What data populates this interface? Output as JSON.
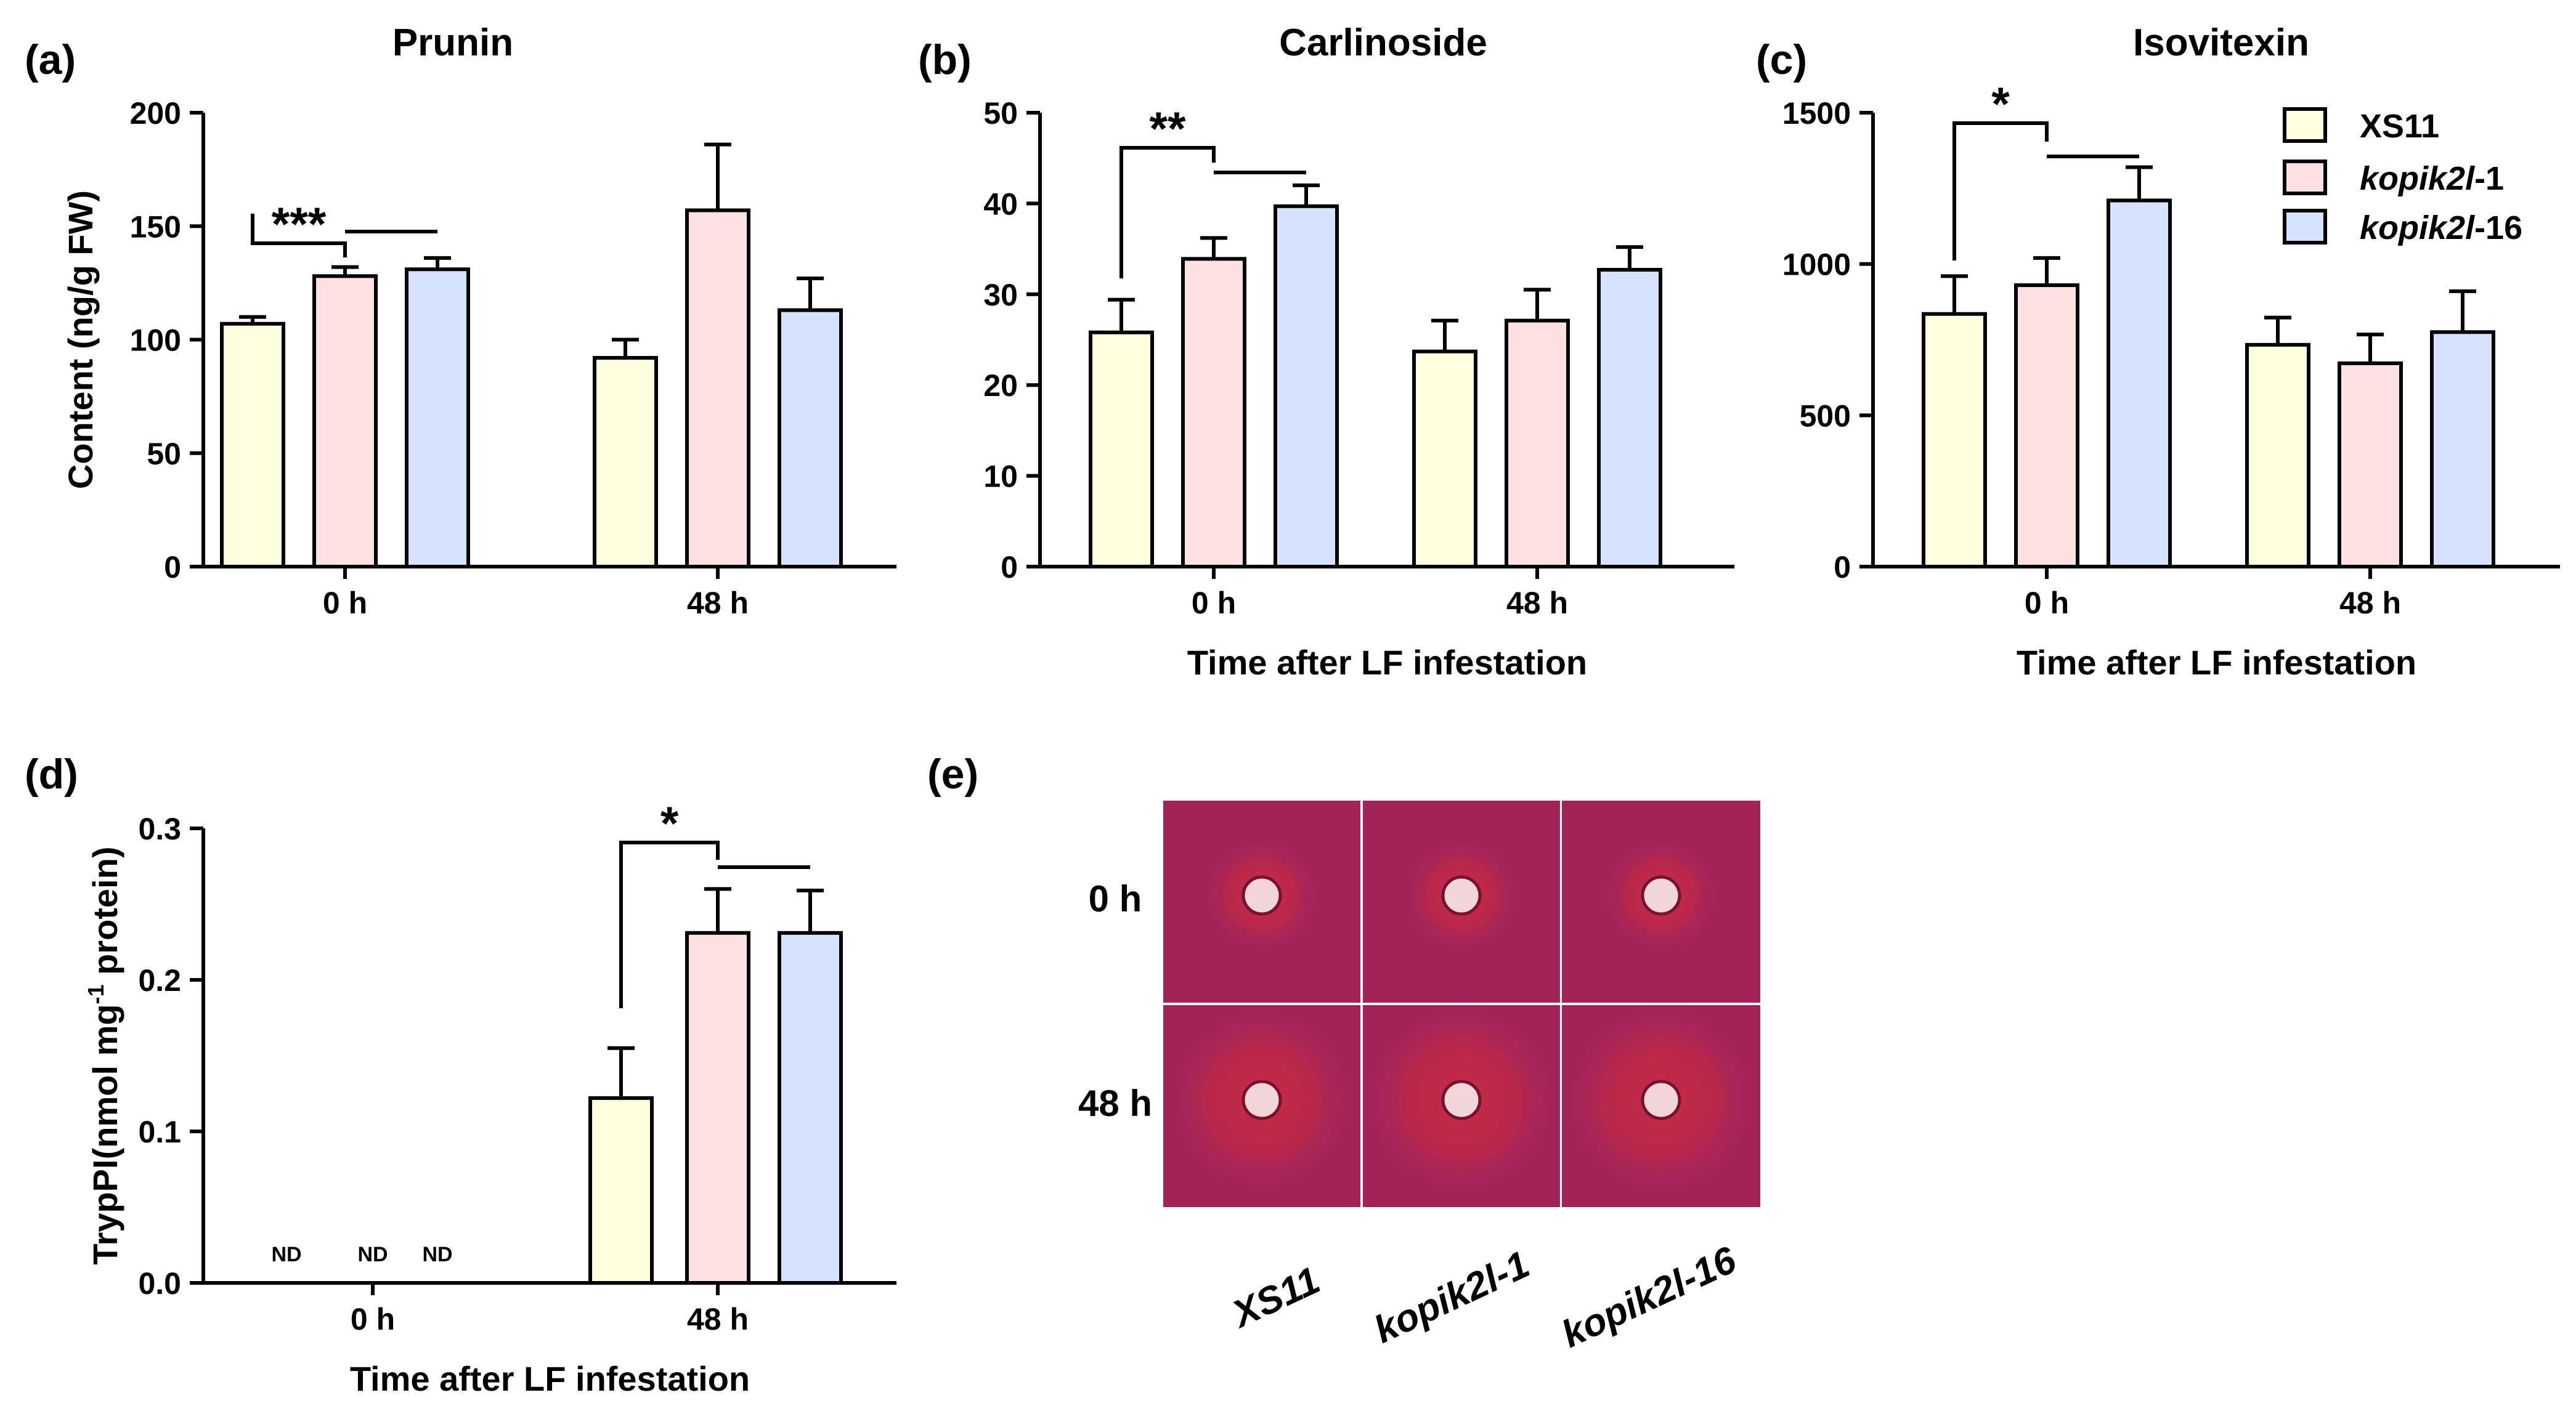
{
  "figure": {
    "legend": [
      {
        "label_main": "XS11",
        "label_suffix": "",
        "color": "#FFFFE0"
      },
      {
        "label_main": "kopik2l",
        "label_suffix": "-1",
        "color": "#FFE0E0"
      },
      {
        "label_main": "kopik2l",
        "label_suffix": "-16",
        "color": "#D6E2FF"
      }
    ],
    "panel_e": {
      "letter": "(e)",
      "rows": [
        "0 h",
        "48 h"
      ],
      "cols": [
        {
          "main": "XS11",
          "suffix": ""
        },
        {
          "main": "kopik2l",
          "suffix": "-1"
        },
        {
          "main": "kopik2l",
          "suffix": "-16"
        }
      ],
      "plate_color": "#A3245A",
      "halo_color": "#C42A45"
    }
  },
  "chart_data": [
    {
      "type": "bar",
      "letter": "(a)",
      "title": "Prunin",
      "ylabel": "Content (ng/g FW)",
      "xlabel": "",
      "categories": [
        "0 h",
        "48 h"
      ],
      "ylim": [
        0,
        200
      ],
      "yticks": [
        "0",
        "50",
        "100",
        "150",
        "200"
      ],
      "series": [
        {
          "name": "XS11",
          "values": [
            107,
            92
          ],
          "errors": [
            3,
            8
          ]
        },
        {
          "name": "kopik2l-1",
          "values": [
            128,
            157
          ],
          "errors": [
            4,
            29
          ]
        },
        {
          "name": "kopik2l-16",
          "values": [
            131,
            113
          ],
          "errors": [
            5,
            14
          ]
        }
      ],
      "significance": "***"
    },
    {
      "type": "bar",
      "letter": "(b)",
      "title": "Carlinoside",
      "ylabel": "",
      "xlabel": "Time after LF infestation",
      "categories": [
        "0 h",
        "48 h"
      ],
      "ylim": [
        0,
        50
      ],
      "yticks": [
        "0",
        "10",
        "20",
        "30",
        "40",
        "50"
      ],
      "series": [
        {
          "name": "XS11",
          "values": [
            25.8,
            23.7
          ],
          "errors": [
            3.6,
            3.4
          ]
        },
        {
          "name": "kopik2l-1",
          "values": [
            33.9,
            27.1
          ],
          "errors": [
            2.3,
            3.4
          ]
        },
        {
          "name": "kopik2l-16",
          "values": [
            39.7,
            32.7
          ],
          "errors": [
            2.3,
            2.5
          ]
        }
      ],
      "significance": "**"
    },
    {
      "type": "bar",
      "letter": "(c)",
      "title": "Isovitexin",
      "ylabel": "",
      "xlabel": "Time after LF infestation",
      "categories": [
        "0 h",
        "48 h"
      ],
      "ylim": [
        0,
        1500
      ],
      "yticks": [
        "0",
        "500",
        "1000",
        "1500"
      ],
      "series": [
        {
          "name": "XS11",
          "values": [
            835,
            733
          ],
          "errors": [
            125,
            90
          ]
        },
        {
          "name": "kopik2l-1",
          "values": [
            930,
            672
          ],
          "errors": [
            90,
            95
          ]
        },
        {
          "name": "kopik2l-16",
          "values": [
            1210,
            775
          ],
          "errors": [
            110,
            135
          ]
        }
      ],
      "significance": "*"
    },
    {
      "type": "bar",
      "letter": "(d)",
      "title": "",
      "ylabel_pre": "TrypPI(nmol mg",
      "ylabel_sup": "-1",
      "ylabel_post": " protein)",
      "xlabel": "Time after LF infestation",
      "categories": [
        "0 h",
        "48 h"
      ],
      "ylim": [
        0,
        0.3
      ],
      "yticks": [
        "0.0",
        "0.1",
        "0.2",
        "0.3"
      ],
      "series": [
        {
          "name": "XS11",
          "values": [
            null,
            0.122
          ],
          "errors": [
            null,
            0.033
          ]
        },
        {
          "name": "kopik2l-1",
          "values": [
            null,
            0.231
          ],
          "errors": [
            null,
            0.029
          ]
        },
        {
          "name": "kopik2l-16",
          "values": [
            null,
            0.231
          ],
          "errors": [
            null,
            0.028
          ]
        }
      ],
      "not_detected_label": "ND",
      "significance": "*"
    }
  ]
}
